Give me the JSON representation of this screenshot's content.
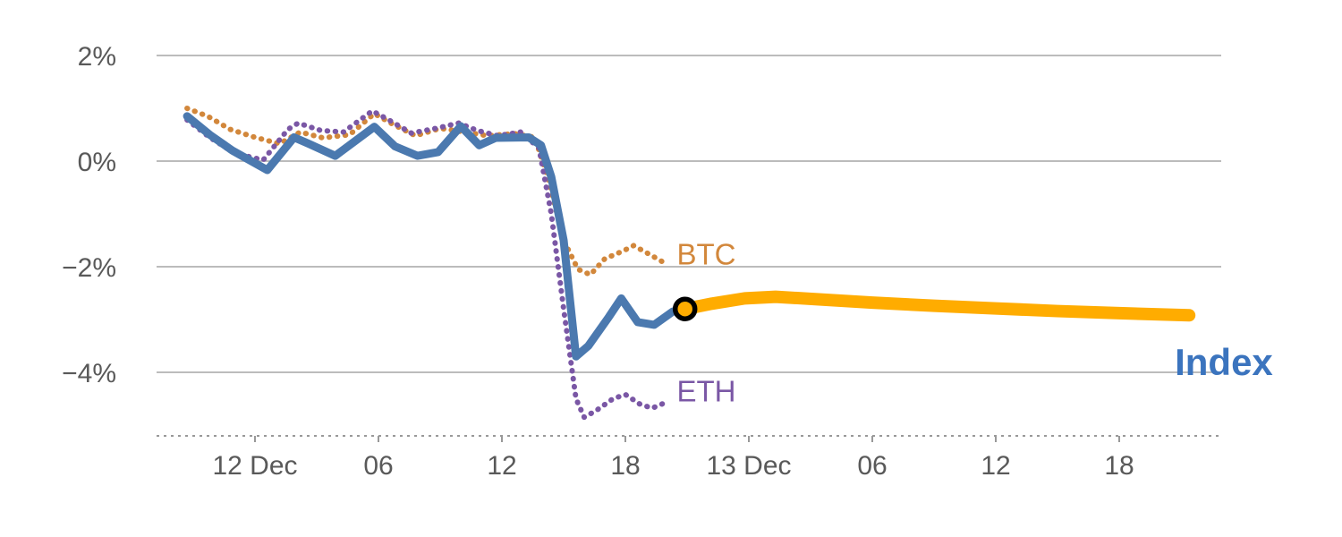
{
  "chart_data": {
    "type": "line",
    "title": "",
    "xlabel": "",
    "ylabel": "",
    "grid": true,
    "ylim": [
      -5.2,
      2.3
    ],
    "x_axis_style": "dashed",
    "colors": {
      "gridline": "#A6A6A6",
      "axis": "#999999",
      "tick_text": "#595959",
      "btc": "#D2873B",
      "eth": "#7A57A5",
      "index": "#4B79AF",
      "index_label": "#3B74BE",
      "forecast": "#FFAC00",
      "marker_ring": "#000000",
      "marker_fill": "#FFAC00"
    },
    "y_ticks": [
      {
        "value": 2,
        "label": "2%"
      },
      {
        "value": 0,
        "label": "0%"
      },
      {
        "value": -2,
        "label": "−2%"
      },
      {
        "value": -4,
        "label": "−4%"
      }
    ],
    "x_ticks": [
      {
        "t": 3,
        "label": "12 Dec"
      },
      {
        "t": 9,
        "label": "06"
      },
      {
        "t": 15,
        "label": "12"
      },
      {
        "t": 21,
        "label": "18"
      },
      {
        "t": 27,
        "label": "13 Dec"
      },
      {
        "t": 33,
        "label": "06"
      },
      {
        "t": 39,
        "label": "12"
      },
      {
        "t": 45,
        "label": "18"
      }
    ],
    "series": [
      {
        "name": "BTC",
        "style": "dotted",
        "color_key": "btc",
        "points": [
          [
            -0.3,
            1.0
          ],
          [
            0.7,
            0.85
          ],
          [
            1.8,
            0.6
          ],
          [
            3.0,
            0.45
          ],
          [
            4.2,
            0.33
          ],
          [
            5.2,
            0.55
          ],
          [
            6.3,
            0.44
          ],
          [
            7.6,
            0.5
          ],
          [
            8.8,
            0.9
          ],
          [
            9.6,
            0.72
          ],
          [
            10.8,
            0.48
          ],
          [
            12.0,
            0.62
          ],
          [
            13.2,
            0.55
          ],
          [
            14.3,
            0.48
          ],
          [
            15.6,
            0.52
          ],
          [
            16.6,
            0.45
          ],
          [
            17.3,
            -0.4
          ],
          [
            18.0,
            -1.5
          ],
          [
            18.7,
            -2.05
          ],
          [
            19.3,
            -2.15
          ],
          [
            20.0,
            -1.85
          ],
          [
            20.9,
            -1.7
          ],
          [
            21.4,
            -1.6
          ],
          [
            22.1,
            -1.75
          ],
          [
            23.0,
            -1.95
          ]
        ]
      },
      {
        "name": "ETH",
        "style": "dotted",
        "color_key": "eth",
        "points": [
          [
            -0.3,
            0.78
          ],
          [
            0.8,
            0.45
          ],
          [
            2.0,
            0.15
          ],
          [
            3.4,
            0.02
          ],
          [
            4.6,
            0.6
          ],
          [
            5.1,
            0.72
          ],
          [
            6.2,
            0.58
          ],
          [
            7.3,
            0.55
          ],
          [
            8.7,
            0.95
          ],
          [
            9.5,
            0.78
          ],
          [
            10.6,
            0.53
          ],
          [
            11.8,
            0.62
          ],
          [
            12.9,
            0.72
          ],
          [
            13.8,
            0.58
          ],
          [
            14.8,
            0.48
          ],
          [
            15.9,
            0.55
          ],
          [
            16.8,
            0.25
          ],
          [
            17.4,
            -1.0
          ],
          [
            18.0,
            -2.8
          ],
          [
            18.6,
            -4.5
          ],
          [
            19.0,
            -4.85
          ],
          [
            19.6,
            -4.72
          ],
          [
            20.4,
            -4.5
          ],
          [
            21.0,
            -4.42
          ],
          [
            21.7,
            -4.6
          ],
          [
            22.3,
            -4.68
          ],
          [
            22.9,
            -4.58
          ]
        ]
      },
      {
        "name": "Index",
        "style": "solid",
        "color_key": "index",
        "points": [
          [
            -0.3,
            0.85
          ],
          [
            0.8,
            0.5
          ],
          [
            1.9,
            0.2
          ],
          [
            3.6,
            -0.17
          ],
          [
            4.9,
            0.45
          ],
          [
            5.6,
            0.33
          ],
          [
            6.9,
            0.1
          ],
          [
            8.8,
            0.65
          ],
          [
            9.8,
            0.28
          ],
          [
            10.9,
            0.1
          ],
          [
            11.9,
            0.17
          ],
          [
            13.0,
            0.66
          ],
          [
            13.9,
            0.3
          ],
          [
            14.7,
            0.44
          ],
          [
            16.3,
            0.45
          ],
          [
            16.9,
            0.3
          ],
          [
            17.4,
            -0.3
          ],
          [
            18.0,
            -1.5
          ],
          [
            18.6,
            -3.7
          ],
          [
            19.2,
            -3.5
          ],
          [
            20.2,
            -2.95
          ],
          [
            20.8,
            -2.6
          ],
          [
            21.6,
            -3.05
          ],
          [
            22.4,
            -3.1
          ],
          [
            23.3,
            -2.85
          ],
          [
            23.9,
            -2.8
          ]
        ]
      },
      {
        "name": "Index forecast",
        "style": "solid-thick",
        "color_key": "forecast",
        "points": [
          [
            23.9,
            -2.8
          ],
          [
            25.2,
            -2.7
          ],
          [
            26.8,
            -2.6
          ],
          [
            28.3,
            -2.57
          ],
          [
            30.5,
            -2.62
          ],
          [
            33.0,
            -2.68
          ],
          [
            36.0,
            -2.74
          ],
          [
            39.0,
            -2.79
          ],
          [
            42.0,
            -2.84
          ],
          [
            45.0,
            -2.88
          ],
          [
            48.4,
            -2.92
          ]
        ]
      }
    ],
    "marker": {
      "t": 23.9,
      "value": -2.8,
      "ring_color_key": "marker_ring",
      "fill_color_key": "marker_fill"
    },
    "annotations": [
      {
        "text": "BTC",
        "color_key": "btc",
        "t": 23.5,
        "value": -1.75,
        "size": 33,
        "weight": "normal"
      },
      {
        "text": "ETH",
        "color_key": "eth",
        "t": 23.5,
        "value": -4.35,
        "size": 33,
        "weight": "normal"
      },
      {
        "text": "Index",
        "color_key": "index_label",
        "t": 47.7,
        "value": -3.85,
        "size": 42,
        "weight": "bold"
      }
    ]
  }
}
